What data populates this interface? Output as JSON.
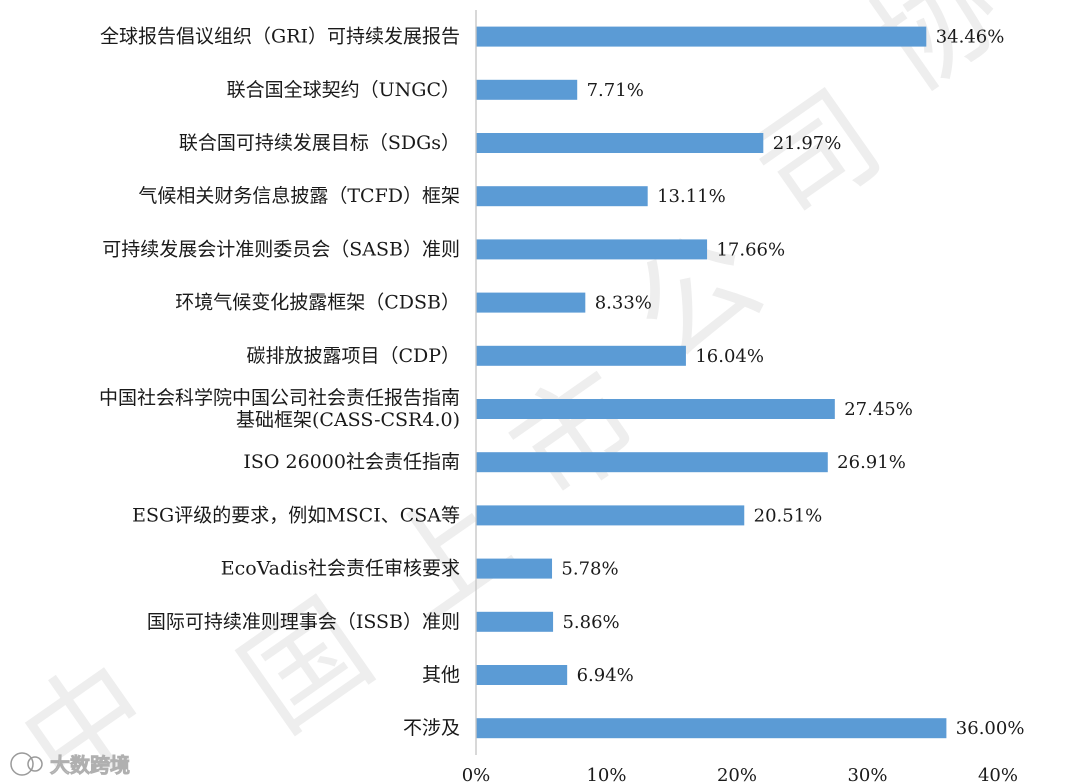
{
  "chart_data": {
    "type": "bar",
    "orientation": "horizontal",
    "bar_color": "#5b9bd5",
    "categories": [
      "全球报告倡议组织（GRI）可持续发展报告",
      "联合国全球契约（UNGC）",
      "联合国可持续发展目标（SDGs）",
      "气候相关财务信息披露（TCFD）框架",
      "可持续发展会计准则委员会（SASB）准则",
      "环境气候变化披露框架（CDSB）",
      "碳排放披露项目（CDP）",
      "中国社会科学院中国公司社会责任报告指南\n基础框架(CASS-CSR4.0)",
      "ISO 26000社会责任指南",
      "ESG评级的要求，例如MSCI、CSA等",
      "EcoVadis社会责任审核要求",
      "国际可持续准则理事会（ISSB）准则",
      "其他",
      "不涉及"
    ],
    "values": [
      34.46,
      7.71,
      21.97,
      13.11,
      17.66,
      8.33,
      16.04,
      27.45,
      26.91,
      20.51,
      5.78,
      5.86,
      6.94,
      36.0
    ],
    "data_labels": [
      "34.46%",
      "7.71%",
      "21.97%",
      "13.11%",
      "17.66%",
      "8.33%",
      "16.04%",
      "27.45%",
      "26.91%",
      "20.51%",
      "5.78%",
      "5.86%",
      "6.94%",
      "36.00%"
    ],
    "xlim": [
      0,
      40
    ],
    "x_ticks": [
      "0%",
      "10%",
      "20%",
      "30%",
      "40%"
    ],
    "grid": false
  },
  "watermark": {
    "text": "中国上市公司协会",
    "logo_text": "大数跨境"
  }
}
